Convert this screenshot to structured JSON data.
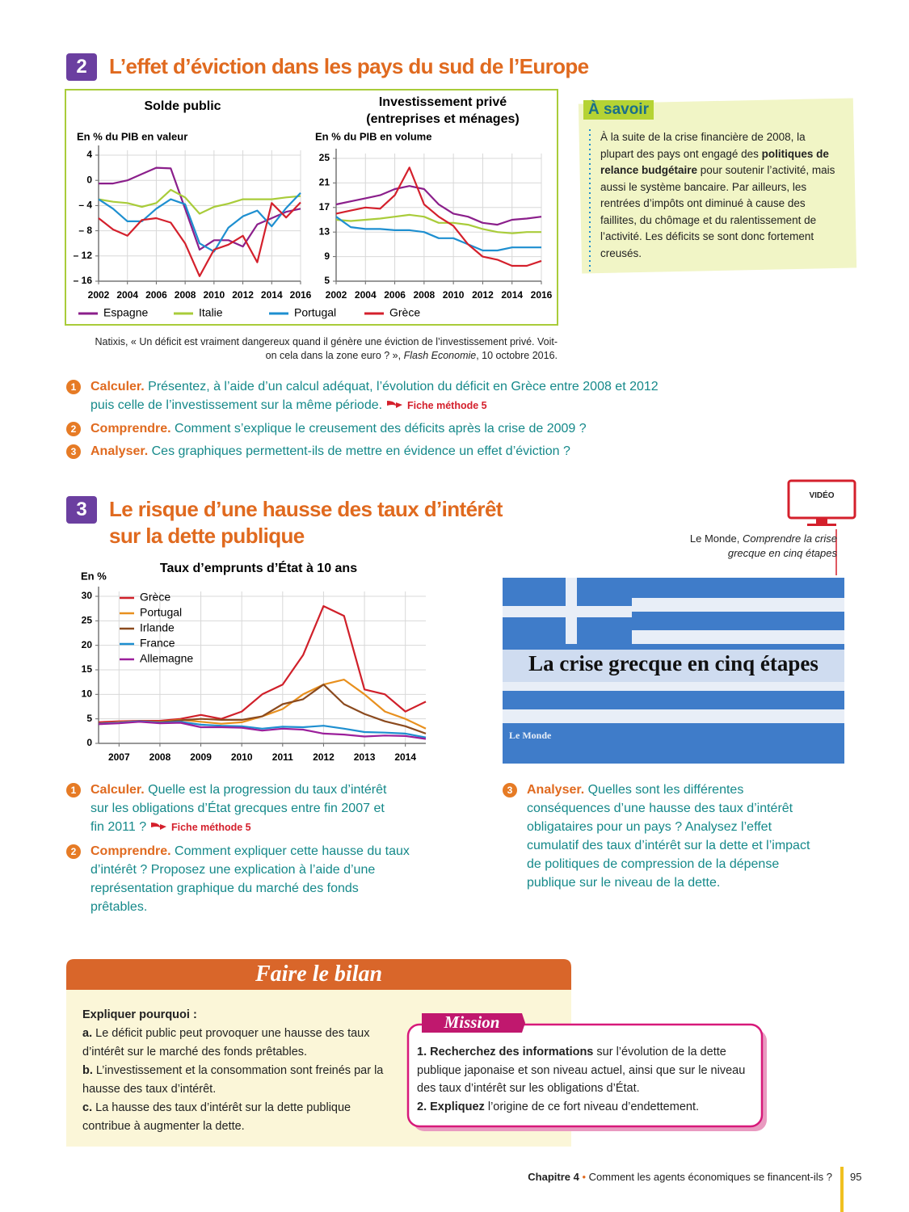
{
  "section2": {
    "number": "2",
    "title": "L’effet d’éviction dans les pays du sud de l’Europe"
  },
  "chart_data": [
    {
      "type": "line",
      "title": "Solde public",
      "y_label": "En % du PIB en valeur",
      "grid": true,
      "x": [
        2002,
        2003,
        2004,
        2005,
        2006,
        2007,
        2008,
        2009,
        2010,
        2011,
        2012,
        2013,
        2014,
        2015,
        2016
      ],
      "xlim": [
        2002,
        2016
      ],
      "xticks": [
        2002,
        2004,
        2006,
        2008,
        2010,
        2012,
        2014,
        2016
      ],
      "ylim": [
        -16,
        4
      ],
      "yticks": [
        4,
        0,
        {
          "value": -4,
          "label": "– 4"
        },
        {
          "value": -8,
          "label": "– 8"
        },
        {
          "value": -12,
          "label": "– 12"
        },
        {
          "value": -16,
          "label": "– 16"
        }
      ],
      "series": [
        {
          "name": "Espagne",
          "color": "#8b1f8b",
          "values": [
            -0.5,
            -0.5,
            0,
            1,
            2,
            1.9,
            -4.5,
            -11,
            -9.5,
            -9.5,
            -10.5,
            -7,
            -6,
            -5,
            -4.5
          ]
        },
        {
          "name": "Italie",
          "color": "#a9cc3a",
          "values": [
            -3,
            -3.4,
            -3.6,
            -4.2,
            -3.6,
            -1.5,
            -2.7,
            -5.3,
            -4.2,
            -3.7,
            -3,
            -3,
            -3,
            -2.7,
            -2.5
          ]
        },
        {
          "name": "Portugal",
          "color": "#1e8fd0",
          "values": [
            -3,
            -4.5,
            -6.5,
            -6.5,
            -4.5,
            -3,
            -3.8,
            -10,
            -11.3,
            -7.5,
            -5.7,
            -4.8,
            -7.3,
            -4.4,
            -2
          ]
        },
        {
          "name": "Grèce",
          "color": "#d4202c",
          "values": [
            -6,
            -7.8,
            -8.8,
            -6.3,
            -6,
            -6.7,
            -10,
            -15.2,
            -11,
            -10.2,
            -8.8,
            -13,
            -3.6,
            -5.9,
            -3.5
          ]
        }
      ]
    },
    {
      "type": "line",
      "title": "Investissement privé",
      "subtitle": "(entreprises et ménages)",
      "y_label": "En % du PIB en volume",
      "grid": true,
      "x": [
        2002,
        2003,
        2004,
        2005,
        2006,
        2007,
        2008,
        2009,
        2010,
        2011,
        2012,
        2013,
        2014,
        2015,
        2016
      ],
      "xlim": [
        2002,
        2016
      ],
      "xticks": [
        2002,
        2004,
        2006,
        2008,
        2010,
        2012,
        2014,
        2016
      ],
      "ylim": [
        5,
        25
      ],
      "yticks": [
        25,
        21,
        17,
        13,
        9,
        5
      ],
      "series": [
        {
          "color": "#8b1f8b",
          "values": [
            17.5,
            18,
            18.5,
            19,
            20,
            20.5,
            20,
            17.5,
            16,
            15.5,
            14.5,
            14.2,
            15,
            15.2,
            15.5
          ]
        },
        {
          "color": "#a9cc3a",
          "values": [
            15,
            14.8,
            15,
            15.2,
            15.5,
            15.8,
            15.5,
            14.5,
            14.5,
            14.2,
            13.5,
            13,
            12.8,
            13,
            13
          ]
        },
        {
          "color": "#1e8fd0",
          "values": [
            15.5,
            13.8,
            13.5,
            13.5,
            13.3,
            13.3,
            13,
            12,
            12,
            11,
            10,
            10,
            10.5,
            10.5,
            10.5
          ]
        },
        {
          "color": "#d4202c",
          "values": [
            16,
            16.5,
            17,
            16.8,
            19,
            23.5,
            17.5,
            15.5,
            14,
            11,
            9,
            8.5,
            7.5,
            7.5,
            8.3
          ]
        }
      ]
    },
    {
      "type": "line",
      "title": "Taux d’emprunts d’État à 10 ans",
      "y_label": "En %",
      "grid": true,
      "x": [
        2006.5,
        2007,
        2007.5,
        2008,
        2008.5,
        2009,
        2009.5,
        2010,
        2010.5,
        2011,
        2011.5,
        2012,
        2012.5,
        2013,
        2013.5,
        2014,
        2014.5
      ],
      "xlim": [
        2006.5,
        2014.5
      ],
      "xticks": [
        2007,
        2008,
        2009,
        2010,
        2011,
        2012,
        2013,
        2014
      ],
      "ylim": [
        0,
        30
      ],
      "yticks": [
        0,
        5,
        10,
        15,
        20,
        25,
        30
      ],
      "series": [
        {
          "name": "Grèce",
          "color": "#d0202a",
          "values": [
            4.3,
            4.5,
            4.6,
            4.6,
            5,
            5.8,
            5,
            6.5,
            10,
            12,
            18,
            28,
            26,
            11,
            10,
            6.5,
            8.5
          ]
        },
        {
          "name": "Portugal",
          "color": "#e8901e",
          "values": [
            4,
            4.3,
            4.5,
            4.4,
            4.8,
            4.4,
            4,
            4.3,
            5.5,
            7,
            10,
            12,
            13,
            10,
            6.5,
            5,
            3
          ]
        },
        {
          "name": "Irlande",
          "color": "#8b4a1e",
          "values": [
            4,
            4.2,
            4.5,
            4.3,
            4.7,
            5,
            4.8,
            4.8,
            5.5,
            8,
            9,
            12,
            8,
            6,
            4.5,
            3.5,
            2
          ]
        },
        {
          "name": "France",
          "color": "#1e8fd0",
          "values": [
            4,
            4.2,
            4.5,
            4.2,
            4.4,
            3.8,
            3.6,
            3.5,
            3,
            3.4,
            3.3,
            3.6,
            3,
            2.3,
            2.2,
            2,
            1.2
          ]
        },
        {
          "name": "Allemagne",
          "color": "#9b1f9b",
          "values": [
            3.9,
            4.1,
            4.4,
            4.1,
            4.2,
            3.3,
            3.3,
            3.2,
            2.6,
            3,
            2.8,
            2,
            1.8,
            1.4,
            1.6,
            1.5,
            0.9
          ]
        }
      ]
    }
  ],
  "source2": {
    "text": "Natixis, « Un déficit est vraiment dangereux quand il génère une éviction de l’investissement privé. Voit-on cela dans la zone euro ? », ",
    "journal": "Flash Economie",
    "date": ", 10 octobre 2016."
  },
  "a_savoir": {
    "title": "À savoir",
    "parts": [
      "À la suite de la crise financière de 2008, la plupart des pays ont engagé des ",
      "politiques de relance budgétaire",
      " pour soutenir l’activité, mais aussi le système bancaire. Par ailleurs, les rentrées d’impôts ont diminué à cause des faillites, du chômage et du ralentissement de l’activité. Les déficits se sont donc fortement creusés."
    ]
  },
  "questions2": [
    {
      "num": "1",
      "label": "Calculer.",
      "text": "Présentez, à l’aide d’un calcul adéquat, l’évolution du déficit en Grèce entre 2008 et 2012 puis celle de l’investissement sur la même période.",
      "ref": "Fiche méthode 5"
    },
    {
      "num": "2",
      "label": "Comprendre.",
      "text": "Comment s’explique le creusement des déficits après la crise de 2009 ?"
    },
    {
      "num": "3",
      "label": "Analyser.",
      "text": "Ces graphiques permettent-ils de mettre en évidence un effet d’éviction ?"
    }
  ],
  "section3": {
    "number": "3",
    "title": [
      "Le risque d’une hausse des taux d’intérêt",
      "sur la dette publique"
    ]
  },
  "video": {
    "badge": "VIDÉO",
    "source": "Le Monde, ",
    "title": "Comprendre la crise grecque en cinq étapes",
    "image_text": "La crise grecque en cinq étapes",
    "logo": "Le Monde"
  },
  "questions3": [
    {
      "num": "1",
      "label": "Calculer.",
      "text": "Quelle est la progression du taux d’intérêt sur les obligations d’État grecques entre fin 2007 et fin 2011 ?",
      "ref": "Fiche méthode 5"
    },
    {
      "num": "2",
      "label": "Comprendre.",
      "text": "Comment expliquer cette hausse du taux d’intérêt ? Proposez une explication à l’aide d’une représentation graphique du marché des fonds prêtables."
    },
    {
      "num": "3",
      "label": "Analyser.",
      "text": "Quelles sont les différentes conséquences d’une hausse des taux d’intérêt obligataires pour un pays ? Analysez l’effet cumulatif des taux d’intérêt sur la dette et l’impact de politiques de compression de la dépense publique sur le niveau de la dette."
    }
  ],
  "bilan": {
    "title": "Faire le bilan",
    "heading": "Expliquer pourquoi :",
    "items": [
      {
        "letter": "a.",
        "text": "Le déficit public peut provoquer une hausse des taux d’intérêt sur le marché des fonds prêtables."
      },
      {
        "letter": "b.",
        "text": "L’investissement et la consommation sont freinés par la hausse des taux d’intérêt."
      },
      {
        "letter": "c.",
        "text": "La hausse des taux d’intérêt sur la dette publique contribue à augmenter la dette."
      }
    ]
  },
  "mission": {
    "title": "Mission",
    "items": [
      {
        "bold": "1. Recherchez des informations",
        "text": " sur l’évolution de la dette publique japonaise et son niveau actuel, ainsi que sur le niveau des taux d’intérêt sur les obligations d’État."
      },
      {
        "bold": "2. Expliquez",
        "text": " l’origine de ce fort niveau d’endettement."
      }
    ]
  },
  "footer": {
    "chapter": "Chapitre 4",
    "bullet": "•",
    "text": "Comment les agents économiques se financent-ils ?",
    "page": "95"
  }
}
